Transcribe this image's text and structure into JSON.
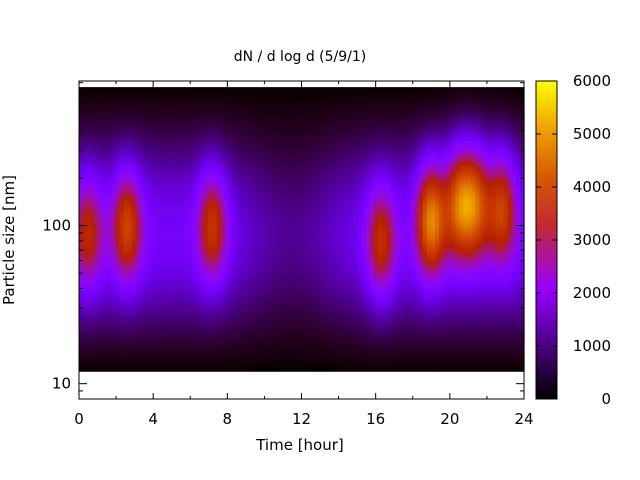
{
  "chart_data": {
    "type": "heatmap",
    "title": "dN / d log d (5/9/1)",
    "xlabel": "Time [hour]",
    "ylabel": "Particle size [nm]",
    "x_range": [
      0,
      24
    ],
    "y_range": [
      8,
      820
    ],
    "y_scale": "log",
    "x_ticks": [
      0,
      4,
      8,
      12,
      16,
      20,
      24
    ],
    "x_tick_labels": [
      "0",
      "4",
      "8",
      "12",
      "16",
      "20",
      "24"
    ],
    "y_ticks": [
      10,
      100
    ],
    "y_tick_labels": [
      "10",
      "100"
    ],
    "colorbar": {
      "range": [
        0,
        6000
      ],
      "ticks": [
        0,
        1000,
        2000,
        3000,
        4000,
        5000,
        6000
      ],
      "tick_labels": [
        "0",
        "1000",
        "2000",
        "3000",
        "4000",
        "5000",
        "6000"
      ],
      "palette": "gnuplot-pm3d"
    },
    "data_extent": {
      "y_min_approx": 12,
      "y_max_approx": 750
    },
    "hotspots": [
      {
        "t": 0.5,
        "d": 90,
        "value": 3200
      },
      {
        "t": 2.6,
        "d": 100,
        "value": 3800
      },
      {
        "t": 7.2,
        "d": 100,
        "value": 3600
      },
      {
        "t": 16.3,
        "d": 80,
        "value": 3400
      },
      {
        "t": 19.0,
        "d": 110,
        "value": 4800
      },
      {
        "t": 20.5,
        "d": 140,
        "value": 4200
      },
      {
        "t": 21.4,
        "d": 140,
        "value": 4000
      },
      {
        "t": 22.8,
        "d": 130,
        "value": 3800
      }
    ]
  }
}
